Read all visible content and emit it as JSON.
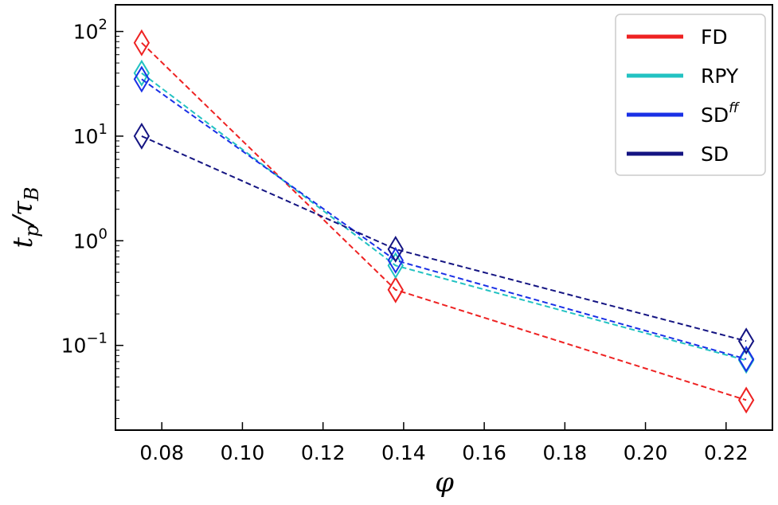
{
  "chart_data": {
    "type": "line",
    "xlabel": "φ",
    "ylabel": {
      "main": "t",
      "sub1": "p",
      "sep": "/τ",
      "sub2": "B"
    },
    "yscale": "log",
    "xlim": [
      0.0685,
      0.2315
    ],
    "ylim": [
      0.0155,
      180
    ],
    "xticks": [
      0.08,
      0.1,
      0.12,
      0.14,
      0.16,
      0.18,
      0.2,
      0.22
    ],
    "xtick_labels": [
      "0.08",
      "0.10",
      "0.12",
      "0.14",
      "0.16",
      "0.18",
      "0.20",
      "0.22"
    ],
    "yticks": [
      {
        "value": 100,
        "base": "10",
        "exp": "2"
      },
      {
        "value": 10,
        "base": "10",
        "exp": "1"
      },
      {
        "value": 1,
        "base": "10",
        "exp": "0"
      },
      {
        "value": 0.1,
        "base": "10",
        "exp": "−1"
      }
    ],
    "x": [
      0.075,
      0.138,
      0.225
    ],
    "series": [
      {
        "name": "FD",
        "color": "#ee2222",
        "values": [
          78,
          0.34,
          0.03
        ]
      },
      {
        "name": "RPY",
        "color": "#22c2c2",
        "values": [
          40,
          0.58,
          0.072
        ]
      },
      {
        "name": "SD",
        "name_sup": "ff",
        "color": "#1a30e6",
        "values": [
          35,
          0.65,
          0.074
        ]
      },
      {
        "name": "SD",
        "color": "#141482",
        "values": [
          10,
          0.83,
          0.11
        ]
      }
    ],
    "grid": false,
    "legend_position": "top-right"
  }
}
